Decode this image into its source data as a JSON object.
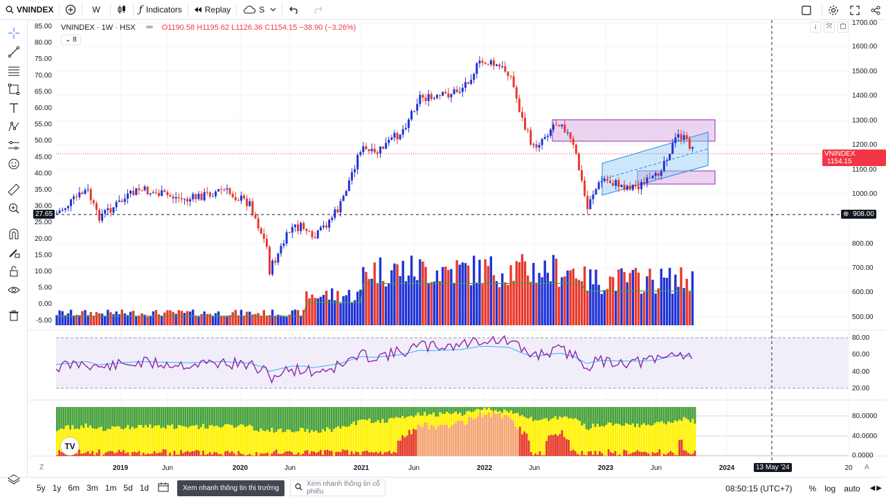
{
  "toolbar": {
    "symbol": "VNINDEX",
    "interval": "W",
    "indicators_label": "Indicators",
    "replay_label": "Replay",
    "cloud_label": "S"
  },
  "legend": {
    "title": "VNINDEX · 1W · HSX",
    "open": "O1190.58",
    "high": "H1195.62",
    "low": "L1126.36",
    "close": "C1154.15",
    "change": "−38.90 (−3.26%)",
    "collapsed_count": "8"
  },
  "price_axis": {
    "labels": [
      "1700.00",
      "1600.00",
      "1500.00",
      "1400.00",
      "1300.00",
      "1200.00",
      "1100.00",
      "1000.00",
      "800.00",
      "700.00",
      "600.00",
      "500.00"
    ],
    "last_price_tag": "VNINDEX",
    "last_price": "1154.15",
    "crosshair_price": "908.00"
  },
  "left_axis": {
    "labels": [
      "85.00",
      "80.00",
      "75.00",
      "70.00",
      "65.00",
      "60.00",
      "55.00",
      "50.00",
      "45.00",
      "40.00",
      "35.00",
      "30.00",
      "25.00",
      "20.00",
      "15.00",
      "10.00",
      "5.00",
      "0.00",
      "-5.00"
    ],
    "crosshair_value": "27.65"
  },
  "rsi_axis": {
    "labels": [
      "80.00",
      "60.00",
      "40.00",
      "20.00"
    ]
  },
  "bottom_axis": {
    "labels": [
      "80.0000",
      "40.0000",
      "0.0000"
    ]
  },
  "time_axis": {
    "labels": [
      "2019",
      "Jun",
      "2020",
      "Jun",
      "2021",
      "Jun",
      "2022",
      "Jun",
      "2023",
      "Jun",
      "2024",
      "20"
    ],
    "crosshair_date": "13 May '24"
  },
  "bottombar": {
    "ranges": [
      "5y",
      "1y",
      "6m",
      "3m",
      "1m",
      "5d",
      "1d"
    ],
    "news_button": "Xem nhanh thông tin thị trường",
    "search_placeholder": "Xem nhanh thông tin cổ phiếu",
    "clock": "08:50:15 (UTC+7)",
    "percent": "%",
    "log": "log",
    "auto": "auto"
  },
  "colors": {
    "up": "#2133d4",
    "down": "#e8392c",
    "ma": "#43a047",
    "rsi": "#8e24aa",
    "rsi_ma": "#29b6f6"
  }
}
